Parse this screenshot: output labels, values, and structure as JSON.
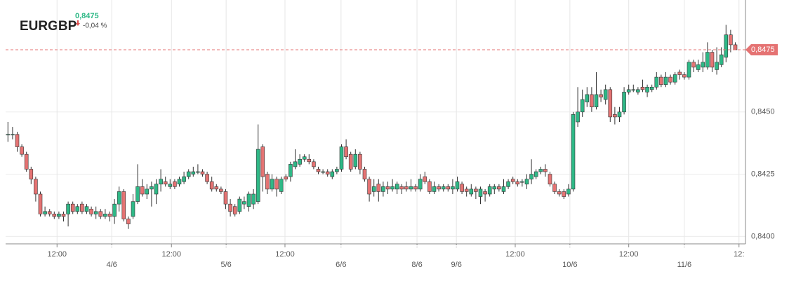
{
  "chart_data": {
    "type": "candlestick",
    "title": "EURGBP",
    "last_price": {
      "value": 0.8475,
      "label": "0,8475"
    },
    "change": {
      "value": -0.04,
      "label": "-0,04 %"
    },
    "up_color": "#2eb886",
    "down_color": "#e57373",
    "grid": true,
    "ylim": [
      0.8397,
      0.8495
    ],
    "yticks": [
      {
        "value": 0.84,
        "label": "0,8400"
      },
      {
        "value": 0.8425,
        "label": "0,8425"
      },
      {
        "value": 0.845,
        "label": "0,8450"
      }
    ],
    "xlim": [
      -0.5,
      159.2
    ],
    "xticks": [
      {
        "value": 10.6,
        "label": "12:00"
      },
      {
        "value": 22.4,
        "label": "4/6"
      },
      {
        "value": 35.3,
        "label": "12:00"
      },
      {
        "value": 47.1,
        "label": "5/6"
      },
      {
        "value": 59.8,
        "label": "12:00"
      },
      {
        "value": 71.9,
        "label": "6/6"
      },
      {
        "value": 88.3,
        "label": "8/6"
      },
      {
        "value": 96.8,
        "label": "9/6"
      },
      {
        "value": 109.5,
        "label": "12:00"
      },
      {
        "value": 121.3,
        "label": "10/6"
      },
      {
        "value": 134.0,
        "label": "12:00"
      },
      {
        "value": 146.0,
        "label": "11/6"
      },
      {
        "value": 157.8,
        "label": "12:"
      }
    ],
    "open": [
      0.8441,
      0.8441,
      0.8441,
      0.8436,
      0.8433,
      0.8427,
      0.8423,
      0.8417,
      0.8409,
      0.841,
      0.8409,
      0.8408,
      0.8409,
      0.8409,
      0.8413,
      0.841,
      0.8413,
      0.841,
      0.8411,
      0.8409,
      0.841,
      0.8408,
      0.8409,
      0.8408,
      0.8413,
      0.8418,
      0.8407,
      0.8408,
      0.8414,
      0.842,
      0.8417,
      0.8419,
      0.8417,
      0.8421,
      0.8422,
      0.842,
      0.8422,
      0.8421,
      0.8422,
      0.8424,
      0.8425,
      0.8426,
      0.8426,
      0.8425,
      0.8422,
      0.842,
      0.8419,
      0.8418,
      0.8413,
      0.8412,
      0.841,
      0.8413,
      0.8412,
      0.8413,
      0.8414,
      0.8436,
      0.8425,
      0.8419,
      0.8423,
      0.8418,
      0.8424,
      0.8424,
      0.8428,
      0.8429,
      0.8431,
      0.8431,
      0.843,
      0.8427,
      0.8426,
      0.8426,
      0.8424,
      0.8426,
      0.8427,
      0.8436,
      0.8433,
      0.8428,
      0.8433,
      0.8427,
      0.8423,
      0.8418,
      0.8421,
      0.8418,
      0.842,
      0.8419,
      0.8419,
      0.842,
      0.842,
      0.8419,
      0.842,
      0.8419,
      0.8424,
      0.8422,
      0.8418,
      0.842,
      0.8419,
      0.842,
      0.8419,
      0.8419,
      0.8421,
      0.8419,
      0.8417,
      0.8419,
      0.8416,
      0.8418,
      0.8417,
      0.8419,
      0.842,
      0.8418,
      0.842,
      0.8423,
      0.8422,
      0.8422,
      0.8421,
      0.8423,
      0.8424,
      0.8426,
      0.8427,
      0.8425,
      0.8421,
      0.8418,
      0.8418,
      0.8417,
      0.8419,
      0.8446,
      0.845,
      0.8454,
      0.8457,
      0.8452,
      0.8457,
      0.8455,
      0.8459,
      0.8449,
      0.8448,
      0.845,
      0.8458,
      0.8459,
      0.8458,
      0.846,
      0.8458,
      0.8459,
      0.846,
      0.8464,
      0.8461,
      0.8464,
      0.8462,
      0.8466,
      0.8465,
      0.8464,
      0.847,
      0.8467,
      0.8468,
      0.8468,
      0.8474,
      0.8467,
      0.8469,
      0.8472,
      0.8481,
      0.8477
    ],
    "high": [
      0.8446,
      0.8444,
      0.8442,
      0.8437,
      0.8434,
      0.8428,
      0.8424,
      0.8418,
      0.8412,
      0.8411,
      0.841,
      0.841,
      0.841,
      0.8414,
      0.8414,
      0.8413,
      0.8414,
      0.8413,
      0.8412,
      0.8412,
      0.8411,
      0.8411,
      0.841,
      0.8415,
      0.842,
      0.8419,
      0.8408,
      0.8417,
      0.8429,
      0.8423,
      0.8421,
      0.8422,
      0.8423,
      0.8427,
      0.8424,
      0.8423,
      0.8423,
      0.8424,
      0.8426,
      0.8427,
      0.8428,
      0.8429,
      0.8427,
      0.8426,
      0.8424,
      0.8421,
      0.842,
      0.8419,
      0.8415,
      0.8413,
      0.8416,
      0.8416,
      0.8418,
      0.8419,
      0.8445,
      0.8437,
      0.8426,
      0.8425,
      0.8424,
      0.8424,
      0.8425,
      0.843,
      0.8435,
      0.8433,
      0.8433,
      0.8433,
      0.8431,
      0.8428,
      0.8427,
      0.8427,
      0.8427,
      0.8428,
      0.8437,
      0.8439,
      0.8434,
      0.8435,
      0.8434,
      0.8428,
      0.8424,
      0.8423,
      0.8423,
      0.8422,
      0.8422,
      0.8423,
      0.8422,
      0.8421,
      0.8422,
      0.8423,
      0.8421,
      0.8425,
      0.8426,
      0.8423,
      0.8422,
      0.8421,
      0.8421,
      0.8421,
      0.8423,
      0.8424,
      0.8422,
      0.842,
      0.8421,
      0.842,
      0.842,
      0.8419,
      0.8421,
      0.8421,
      0.8421,
      0.8423,
      0.8423,
      0.8424,
      0.8423,
      0.8423,
      0.8425,
      0.8431,
      0.8427,
      0.8428,
      0.8429,
      0.8426,
      0.8422,
      0.8419,
      0.8419,
      0.8421,
      0.845,
      0.846,
      0.8459,
      0.846,
      0.846,
      0.8466,
      0.8459,
      0.8461,
      0.846,
      0.8452,
      0.8452,
      0.846,
      0.8461,
      0.8461,
      0.846,
      0.8463,
      0.8461,
      0.8461,
      0.8466,
      0.8465,
      0.8466,
      0.8465,
      0.8466,
      0.8467,
      0.8466,
      0.8471,
      0.8471,
      0.8471,
      0.8474,
      0.8478,
      0.8475,
      0.8476,
      0.8476,
      0.8485,
      0.8483,
      0.8478
    ],
    "low": [
      0.8438,
      0.8439,
      0.8434,
      0.8432,
      0.8426,
      0.8421,
      0.8414,
      0.8408,
      0.8408,
      0.8408,
      0.8407,
      0.8407,
      0.8406,
      0.8404,
      0.8409,
      0.8409,
      0.8409,
      0.8409,
      0.8408,
      0.8407,
      0.8407,
      0.8407,
      0.8406,
      0.8405,
      0.841,
      0.8406,
      0.8403,
      0.8407,
      0.8413,
      0.8416,
      0.8415,
      0.8412,
      0.8413,
      0.8418,
      0.842,
      0.8419,
      0.8419,
      0.842,
      0.8421,
      0.8423,
      0.8424,
      0.8425,
      0.8424,
      0.8421,
      0.8418,
      0.8418,
      0.8417,
      0.8411,
      0.8408,
      0.8408,
      0.8409,
      0.8411,
      0.841,
      0.8411,
      0.8413,
      0.8418,
      0.8417,
      0.8418,
      0.8416,
      0.8417,
      0.8422,
      0.8422,
      0.8427,
      0.8428,
      0.843,
      0.8429,
      0.8427,
      0.8425,
      0.8425,
      0.8424,
      0.8423,
      0.8425,
      0.8426,
      0.8431,
      0.8426,
      0.8427,
      0.8425,
      0.8422,
      0.8414,
      0.8416,
      0.8414,
      0.8416,
      0.8417,
      0.8418,
      0.8417,
      0.8417,
      0.8418,
      0.8418,
      0.8418,
      0.8418,
      0.8421,
      0.8417,
      0.8417,
      0.8418,
      0.8418,
      0.8418,
      0.8417,
      0.8418,
      0.8417,
      0.8416,
      0.8416,
      0.8415,
      0.8413,
      0.8414,
      0.8416,
      0.8417,
      0.8418,
      0.8417,
      0.8419,
      0.8421,
      0.842,
      0.842,
      0.8419,
      0.8421,
      0.8423,
      0.8425,
      0.8424,
      0.842,
      0.8417,
      0.8416,
      0.8415,
      0.8416,
      0.8418,
      0.8444,
      0.8448,
      0.8452,
      0.845,
      0.8451,
      0.8454,
      0.8453,
      0.8446,
      0.8445,
      0.8446,
      0.8449,
      0.8457,
      0.8458,
      0.8457,
      0.8458,
      0.8456,
      0.8458,
      0.8459,
      0.846,
      0.846,
      0.8461,
      0.8461,
      0.8463,
      0.8463,
      0.8463,
      0.8466,
      0.8466,
      0.8466,
      0.8467,
      0.8466,
      0.8465,
      0.8468,
      0.847,
      0.8474,
      0.8475
    ],
    "close": [
      0.8441,
      0.8441,
      0.8436,
      0.8433,
      0.8427,
      0.8423,
      0.8417,
      0.8409,
      0.841,
      0.8409,
      0.8408,
      0.8409,
      0.8408,
      0.8413,
      0.841,
      0.8412,
      0.841,
      0.8412,
      0.8409,
      0.841,
      0.8408,
      0.8409,
      0.8408,
      0.8413,
      0.8418,
      0.8407,
      0.8405,
      0.8414,
      0.842,
      0.8417,
      0.8419,
      0.842,
      0.8421,
      0.8423,
      0.8421,
      0.8421,
      0.842,
      0.8423,
      0.8424,
      0.8426,
      0.8426,
      0.8426,
      0.8425,
      0.8422,
      0.8419,
      0.8419,
      0.8418,
      0.8413,
      0.841,
      0.8409,
      0.8415,
      0.8414,
      0.8417,
      0.8417,
      0.8435,
      0.8424,
      0.8419,
      0.8423,
      0.8419,
      0.8423,
      0.8423,
      0.8429,
      0.843,
      0.8431,
      0.8432,
      0.843,
      0.8428,
      0.8426,
      0.8426,
      0.8425,
      0.8426,
      0.8427,
      0.8436,
      0.8432,
      0.8427,
      0.8433,
      0.8427,
      0.8423,
      0.8417,
      0.842,
      0.8418,
      0.842,
      0.8419,
      0.842,
      0.8421,
      0.8419,
      0.8419,
      0.842,
      0.8419,
      0.8423,
      0.8422,
      0.8418,
      0.842,
      0.8419,
      0.842,
      0.8419,
      0.842,
      0.8422,
      0.8418,
      0.8418,
      0.8419,
      0.8418,
      0.8419,
      0.8417,
      0.842,
      0.842,
      0.8419,
      0.842,
      0.8422,
      0.8422,
      0.8421,
      0.8422,
      0.8423,
      0.8425,
      0.8426,
      0.8427,
      0.8426,
      0.8421,
      0.8418,
      0.8417,
      0.8416,
      0.8419,
      0.8449,
      0.845,
      0.8455,
      0.8457,
      0.8452,
      0.8457,
      0.8456,
      0.8459,
      0.8448,
      0.8448,
      0.845,
      0.8458,
      0.8459,
      0.8459,
      0.8459,
      0.8459,
      0.846,
      0.846,
      0.8464,
      0.8461,
      0.8464,
      0.8462,
      0.8465,
      0.8465,
      0.8464,
      0.847,
      0.8468,
      0.8469,
      0.847,
      0.8474,
      0.8468,
      0.847,
      0.8473,
      0.8481,
      0.8477,
      0.8475
    ]
  }
}
